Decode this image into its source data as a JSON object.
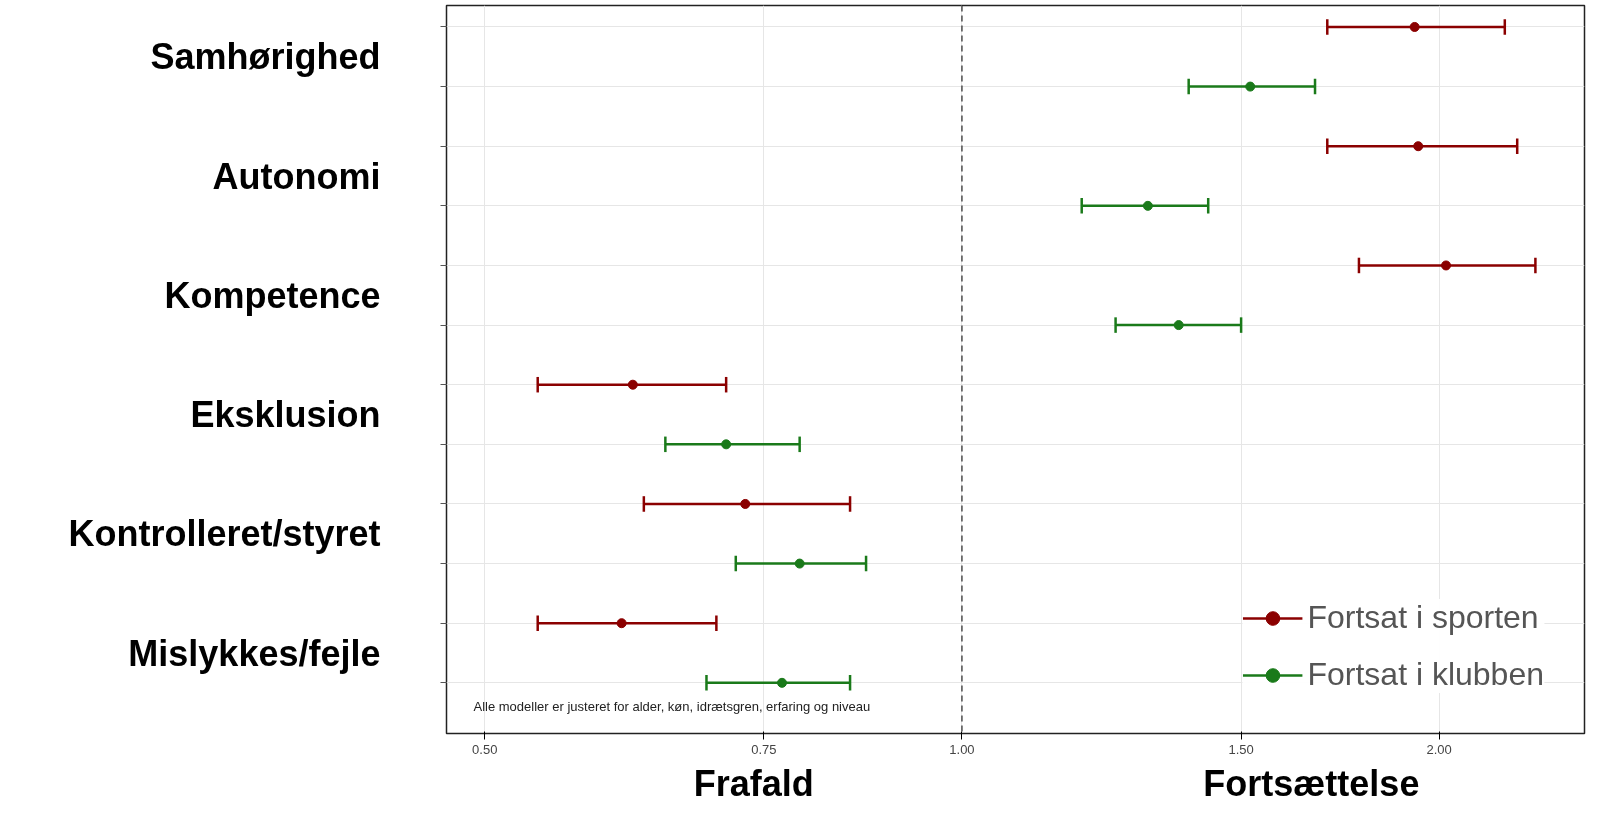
{
  "chart_data": {
    "type": "scatter",
    "orientation": "horizontal",
    "categories": [
      "Samhørighed",
      "Autonomi",
      "Kompetence",
      "Eksklusion",
      "Kontrolleret/styret",
      "Mislykkes/fejle"
    ],
    "series": [
      {
        "name": "Fortsat i sporten",
        "color": "#8b0000",
        "values": [
          1.93,
          1.94,
          2.02,
          0.62,
          0.73,
          0.61
        ],
        "errors": [
          [
            1.7,
            2.2
          ],
          [
            1.7,
            2.24
          ],
          [
            1.78,
            2.3
          ],
          [
            0.54,
            0.71
          ],
          [
            0.63,
            0.85
          ],
          [
            0.54,
            0.7
          ]
        ]
      },
      {
        "name": "Fortsat i klubben",
        "color": "#1a7a1a",
        "values": [
          1.52,
          1.31,
          1.37,
          0.71,
          0.79,
          0.77
        ],
        "errors": [
          [
            1.39,
            1.67
          ],
          [
            1.19,
            1.43
          ],
          [
            1.25,
            1.5
          ],
          [
            0.65,
            0.79
          ],
          [
            0.72,
            0.87
          ],
          [
            0.69,
            0.85
          ]
        ]
      }
    ],
    "log": "x",
    "xlim": [
      0.473,
      2.47
    ],
    "xticks": [
      {
        "value": 0.5,
        "label": "0.50"
      },
      {
        "value": 0.75,
        "label": "0.75"
      },
      {
        "value": 1.0,
        "label": "1.00"
      },
      {
        "value": 1.5,
        "label": "1.50"
      },
      {
        "value": 2.0,
        "label": "2.00"
      }
    ],
    "ref_lines": [
      {
        "axis": "x",
        "value": 1.0,
        "label": null,
        "color": "#333333",
        "line_style": "dashed"
      }
    ],
    "annotations": [
      "Alle modeller er justeret for alder, køn, idrætsgren, erfaring og niveau",
      "Frafald",
      "Fortsættelse"
    ],
    "grid": true,
    "legend": "bottom right",
    "marker": "circle"
  }
}
